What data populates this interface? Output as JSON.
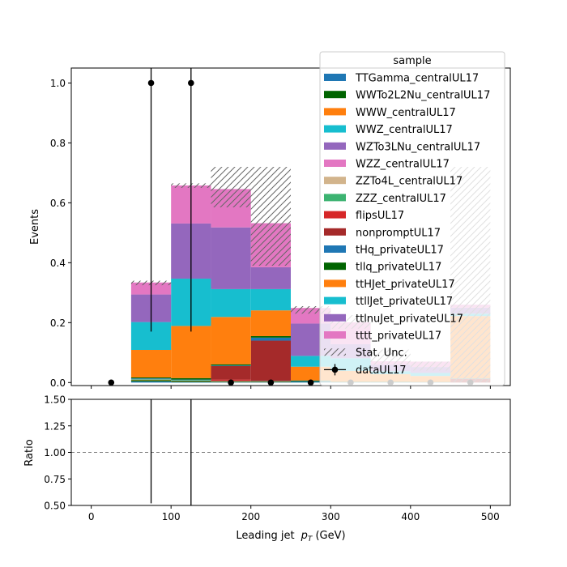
{
  "chart_data": [
    {
      "type": "bar",
      "stacked": true,
      "ylabel": "Events",
      "xlim": [
        -25,
        525
      ],
      "ylim": [
        -0.01,
        1.05
      ],
      "x_ticks": [
        0,
        100,
        200,
        300,
        400,
        500
      ],
      "y_ticks": [
        "0.0",
        "0.2",
        "0.4",
        "0.6",
        "0.8",
        "1.0"
      ],
      "bin_edges": [
        0,
        50,
        100,
        150,
        200,
        250,
        300,
        350,
        400,
        450,
        500
      ],
      "legend": {
        "title": "sample",
        "placement": "top-right"
      },
      "series": [
        {
          "name": "TTGamma_centralUL17",
          "color": "#1f77b4",
          "values": [
            0,
            0.004,
            0.002,
            0.001,
            0.001,
            0.001,
            0,
            0,
            0,
            0
          ]
        },
        {
          "name": "WWTo2L2Nu_centralUL17",
          "color": "#006400",
          "values": [
            0,
            0.004,
            0.003,
            0.002,
            0.002,
            0.001,
            0,
            0,
            0,
            0
          ]
        },
        {
          "name": "WWW_centralUL17",
          "color": "#ff7f0e",
          "values": [
            0,
            0.002,
            0.002,
            0.001,
            0.001,
            0,
            0,
            0,
            0,
            0
          ]
        },
        {
          "name": "WWZ_centralUL17",
          "color": "#17becf",
          "values": [
            0,
            0.002,
            0.002,
            0.001,
            0.001,
            0,
            0,
            0,
            0,
            0
          ]
        },
        {
          "name": "WZTo3LNu_centralUL17",
          "color": "#9467bd",
          "values": [
            0,
            0,
            0,
            0,
            0,
            0,
            0,
            0,
            0,
            0
          ]
        },
        {
          "name": "WZZ_centralUL17",
          "color": "#e377c2",
          "values": [
            0,
            0,
            0,
            0,
            0,
            0,
            0,
            0,
            0,
            0
          ]
        },
        {
          "name": "ZZTo4L_centralUL17",
          "color": "#d2b48c",
          "values": [
            0,
            0,
            0,
            0,
            0,
            0,
            0,
            0,
            0,
            0
          ]
        },
        {
          "name": "ZZZ_centralUL17",
          "color": "#3cb371",
          "values": [
            0,
            0,
            0,
            0,
            0,
            0,
            0,
            0,
            0,
            0
          ]
        },
        {
          "name": "flipsUL17",
          "color": "#d62728",
          "values": [
            0,
            0,
            0,
            0.005,
            0,
            0,
            0,
            0,
            0,
            0
          ]
        },
        {
          "name": "nonpromptUL17",
          "color": "#a52a2a",
          "values": [
            0,
            0,
            0,
            0.045,
            0.135,
            0,
            0,
            0,
            0,
            0.012
          ]
        },
        {
          "name": "tHq_privateUL17",
          "color": "#1f77b4",
          "values": [
            0,
            0.002,
            0.001,
            0.002,
            0.01,
            0.003,
            0.001,
            0.001,
            0.001,
            0.001
          ]
        },
        {
          "name": "tllq_privateUL17",
          "color": "#006400",
          "values": [
            0,
            0.003,
            0.005,
            0.004,
            0.005,
            0.002,
            0.002,
            0.002,
            0.001,
            0.001
          ]
        },
        {
          "name": "ttHJet_privateUL17",
          "color": "#ff7f0e",
          "values": [
            0,
            0.092,
            0.174,
            0.158,
            0.086,
            0.046,
            0.036,
            0.025,
            0.02,
            0.208
          ]
        },
        {
          "name": "ttllJet_privateUL17",
          "color": "#17becf",
          "values": [
            0,
            0.093,
            0.158,
            0.093,
            0.071,
            0.036,
            0.042,
            0.01,
            0.01,
            0.008
          ]
        },
        {
          "name": "ttlnuJet_privateUL17",
          "color": "#9467bd",
          "values": [
            0,
            0.092,
            0.184,
            0.206,
            0.073,
            0.108,
            0.047,
            0.022,
            0.02,
            0.02
          ]
        },
        {
          "name": "tttt_privateUL17",
          "color": "#e377c2",
          "values": [
            0,
            0.04,
            0.127,
            0.128,
            0.147,
            0.052,
            0.073,
            0.011,
            0.018,
            0.01
          ]
        }
      ],
      "stat_unc": {
        "name": "Stat. Unc.",
        "low": [
          0,
          0.325,
          0.65,
          0.585,
          0.39,
          0.23,
          0.18,
          0.06,
          0.04,
          0
        ],
        "high": [
          0,
          0.34,
          0.665,
          0.72,
          0.72,
          0.255,
          0.225,
          0.11,
          0.07,
          0.72
        ]
      },
      "data_points": {
        "name": "dataUL17",
        "x": [
          25,
          75,
          125,
          175,
          225,
          275,
          325,
          375,
          425,
          475
        ],
        "y": [
          0,
          1,
          1,
          0,
          0,
          0,
          0,
          0,
          0,
          0
        ],
        "err_low": [
          0,
          0.83,
          0.83,
          0,
          0,
          0,
          0,
          0,
          0,
          0
        ],
        "err_high": [
          0,
          1.3,
          1.3,
          0,
          0,
          0,
          0,
          0,
          0,
          0
        ]
      }
    },
    {
      "type": "scatter",
      "ylabel": "Ratio",
      "xlabel_prefix": "Leading jet",
      "xlabel_symbol": "p",
      "xlabel_subscript": "T",
      "xlabel_suffix": " (GeV)",
      "xlim": [
        -25,
        525
      ],
      "ylim": [
        0.5,
        1.5
      ],
      "x_ticks": [
        "0",
        "100",
        "200",
        "300",
        "400",
        "500"
      ],
      "y_ticks": [
        "0.50",
        "0.75",
        "1.00",
        "1.25",
        "1.50"
      ],
      "reference_line": 1.0,
      "ratio_error_bars": [
        {
          "x": 75,
          "low": 0.52,
          "high": 1.6
        },
        {
          "x": 125,
          "low": 0.5,
          "high": 1.6
        }
      ]
    }
  ]
}
